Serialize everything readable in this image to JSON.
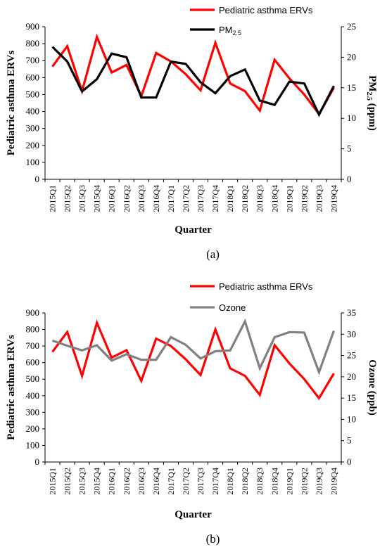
{
  "chart_data": [
    {
      "type": "line",
      "panel_label": "(a)",
      "categories": [
        "2015Q1",
        "2015Q2",
        "2015Q3",
        "2015Q4",
        "2016Q1",
        "2016Q2",
        "2016Q3",
        "2016Q4",
        "2017Q1",
        "2017Q2",
        "2017Q3",
        "2017Q4",
        "2018Q1",
        "2018Q2",
        "2018Q3",
        "2018Q4",
        "2019Q1",
        "2019Q2",
        "2019Q3",
        "2019Q4"
      ],
      "xlabel": "Quarter",
      "ylabel": "Pediatric asthma ERVs",
      "y2label_main": "PM",
      "y2label_sub": "2.5",
      "y2label_unit": " (ppm)",
      "ylim": [
        0,
        900
      ],
      "yticks": [
        0,
        100,
        200,
        300,
        400,
        500,
        600,
        700,
        800,
        900
      ],
      "y2lim": [
        0,
        25
      ],
      "y2ticks": [
        0,
        5,
        10,
        15,
        20,
        25
      ],
      "legend_placement": "top-right",
      "series": [
        {
          "name": "Pediatric asthma ERVs",
          "axis": "left",
          "color": "#ff0000",
          "values": [
            665,
            785,
            520,
            840,
            630,
            675,
            490,
            745,
            695,
            620,
            525,
            805,
            565,
            520,
            405,
            705,
            595,
            500,
            385,
            540
          ]
        },
        {
          "name_main": "PM",
          "name_sub": "2.5",
          "axis": "right",
          "color": "#000000",
          "values": [
            21.7,
            19.3,
            14.4,
            16.4,
            20.6,
            20.0,
            13.4,
            13.4,
            19.3,
            18.9,
            15.9,
            14.1,
            16.9,
            18.0,
            12.9,
            12.2,
            16.0,
            15.7,
            10.6,
            15.3
          ]
        }
      ]
    },
    {
      "type": "line",
      "panel_label": "(b)",
      "categories": [
        "2015Q1",
        "2015Q2",
        "2015Q3",
        "2015Q4",
        "2016Q1",
        "2016Q2",
        "2016Q3",
        "2016Q4",
        "2017Q1",
        "2017Q2",
        "2017Q3",
        "2017Q4",
        "2018Q1",
        "2018Q2",
        "2018Q3",
        "2018Q4",
        "2019Q1",
        "2019Q2",
        "2019Q3",
        "2019Q4"
      ],
      "xlabel": "Quarter",
      "ylabel": "Pediatric asthma ERVs",
      "y2label": "Ozone (ppb)",
      "ylim": [
        0,
        900
      ],
      "yticks": [
        0,
        100,
        200,
        300,
        400,
        500,
        600,
        700,
        800,
        900
      ],
      "y2lim": [
        0,
        35
      ],
      "y2ticks": [
        0,
        5,
        10,
        15,
        20,
        25,
        30,
        35
      ],
      "legend_placement": "top-right",
      "series": [
        {
          "name": "Pediatric asthma ERVs",
          "axis": "left",
          "color": "#ff0000",
          "values": [
            665,
            785,
            520,
            840,
            630,
            675,
            490,
            745,
            700,
            620,
            525,
            800,
            565,
            520,
            405,
            705,
            595,
            500,
            385,
            535
          ]
        },
        {
          "name": "Ozone",
          "axis": "right",
          "color": "#808080",
          "values": [
            28.5,
            27.3,
            26.2,
            27.4,
            23.8,
            25.3,
            24.0,
            24.0,
            29.3,
            27.5,
            24.3,
            26.0,
            26.2,
            33.0,
            22.0,
            29.3,
            30.5,
            30.4,
            21.1,
            30.8
          ]
        }
      ]
    }
  ]
}
